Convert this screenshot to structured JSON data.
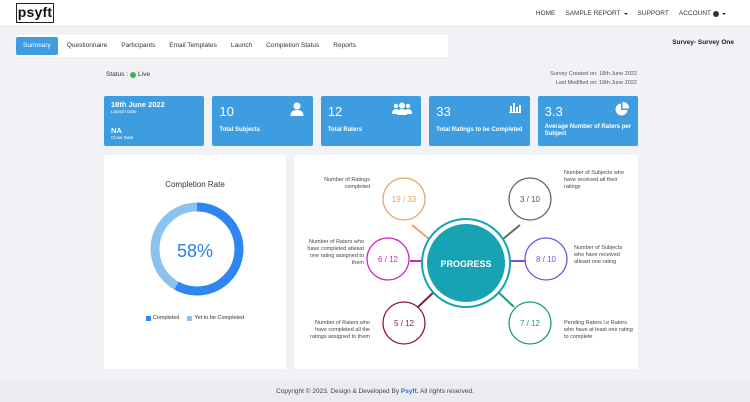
{
  "header": {
    "logo": "psyft",
    "nav": [
      "HOME",
      "SAMPLE REPORT",
      "SUPPORT",
      "ACCOUNT"
    ]
  },
  "tabs": [
    "Summary",
    "Questionnaire",
    "Participants",
    "Email Templates",
    "Launch",
    "Completion Status",
    "Reports"
  ],
  "survey_name": "Survey- Survey One",
  "status": {
    "label": "Status :",
    "value": "Live"
  },
  "dates": {
    "created": "Survey Created on: 18th June 2022",
    "modified": "Last Modified on: 18th June 2022"
  },
  "cards": {
    "launch_date": "18th June 2022",
    "launch_label": "Launch Date",
    "close_date": "NA",
    "close_label": "Close Date",
    "subjects_value": "10",
    "subjects_label": "Total Subjects",
    "raters_value": "12",
    "raters_label": "Total Raters",
    "ratings_value": "33",
    "ratings_label": "Total Ratings to be Completed",
    "avg_value": "3.3",
    "avg_label": "Average Number of Raters per Subject",
    "icons": [
      "user-icon",
      "users-icon",
      "bar-chart-icon",
      "pie-chart-icon"
    ]
  },
  "completion": {
    "title": "Completion Rate",
    "percent_text": "58%",
    "completed_fraction": 0.58,
    "legend_completed": "Completed",
    "legend_remaining": "Yet to be Completed",
    "colors": {
      "completed": "#2f86f0",
      "remaining": "#8cc3ee"
    }
  },
  "progress": {
    "center": "PROGRESS",
    "items": [
      {
        "value": "19 / 33",
        "label": "Number of Ratings completed",
        "color": "#e4a56a"
      },
      {
        "value": "3 / 10",
        "label": "Number of Subjects who have received all their ratings",
        "color": "#666666"
      },
      {
        "value": "6 / 12",
        "label": "Number of Raters who have completed atleast one rating assigned to them",
        "color": "#c627c2"
      },
      {
        "value": "8 / 10",
        "label": "Number of Subjects who have received atleast one rating",
        "color": "#7a4fe0"
      },
      {
        "value": "5 / 12",
        "label": "Number of Raters who have completed all the ratings assigned to them",
        "color": "#8a1c3e"
      },
      {
        "value": "7 / 12",
        "label": "Pending Raters i.e Raters who have at least one rating to complete",
        "color": "#1e9a80"
      }
    ],
    "center_color": "#17a3b4"
  },
  "footer": {
    "text": "Copyright © 2023. Design & Developed By",
    "brand": "Psyft.",
    "suffix": "All rights reserved."
  }
}
